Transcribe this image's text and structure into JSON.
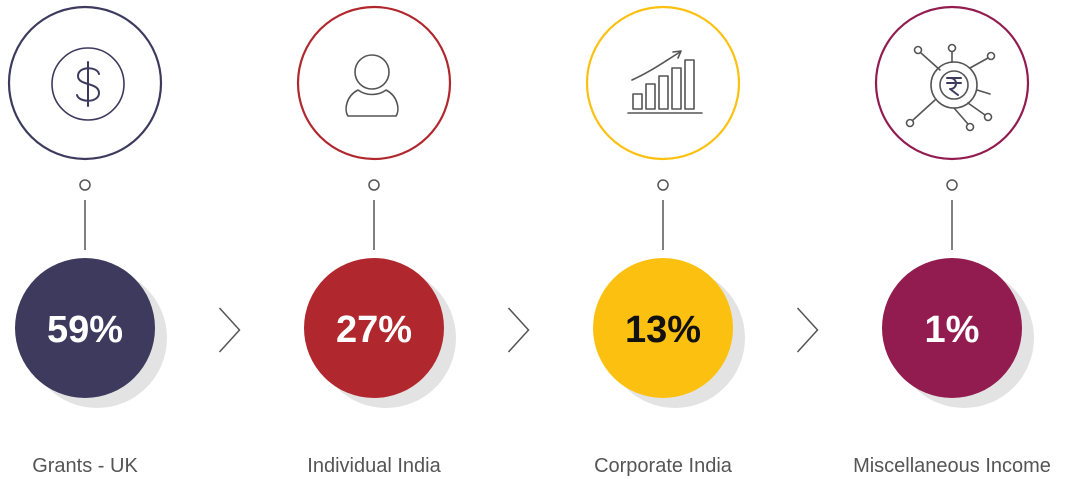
{
  "items": [
    {
      "percent": "59%",
      "label": "Grants - UK",
      "color": "#3d3a5e",
      "text_color": "#ffffff"
    },
    {
      "percent": "27%",
      "label": "Individual India",
      "color": "#b0282e",
      "text_color": "#ffffff"
    },
    {
      "percent": "13%",
      "label": "Corporate India",
      "color": "#fcc010",
      "text_color": "#111111"
    },
    {
      "percent": "1%",
      "label": "Miscellaneous Income",
      "color": "#921c4f",
      "text_color": "#ffffff"
    }
  ]
}
